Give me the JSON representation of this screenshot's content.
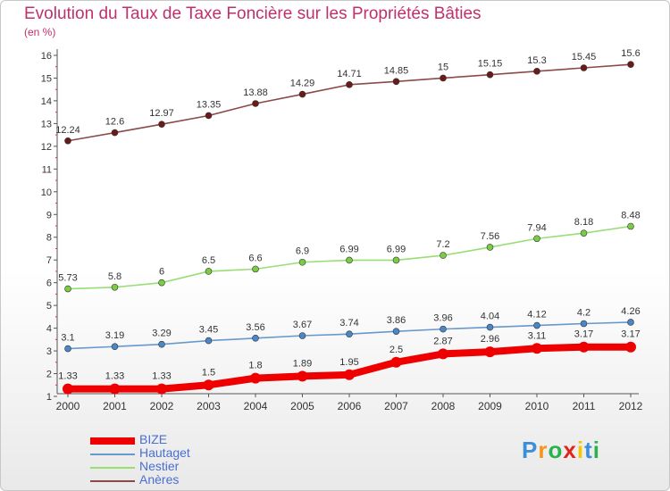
{
  "title": "Evolution du Taux de Taxe Foncière sur les Propriétés Bâties",
  "subtitle": "(en %)",
  "logo": {
    "text": "Proxiti",
    "colors": [
      "#3b8fd8",
      "#f7941d",
      "#2bb24c",
      "#e2231a",
      "#f7c600",
      "#3b8fd8",
      "#2bb24c"
    ]
  },
  "chart_data": {
    "type": "line",
    "categories": [
      "2000",
      "2001",
      "2002",
      "2003",
      "2004",
      "2005",
      "2006",
      "2007",
      "2008",
      "2009",
      "2010",
      "2011",
      "2012"
    ],
    "ylim": [
      1,
      16
    ],
    "yticks": [
      1,
      2,
      3,
      4,
      5,
      6,
      7,
      8,
      9,
      10,
      11,
      12,
      13,
      14,
      15,
      16
    ],
    "grid": false,
    "legend_position": "bottom-left",
    "series": [
      {
        "name": "BIZE",
        "color": "#ee0000",
        "bold": true,
        "values": [
          1.33,
          1.33,
          1.33,
          1.5,
          1.8,
          1.89,
          1.95,
          2.5,
          2.87,
          2.96,
          3.11,
          3.17,
          3.17
        ]
      },
      {
        "name": "Hautaget",
        "color": "#6699cc",
        "point_color": "#4a86c8",
        "bold": false,
        "values": [
          3.1,
          3.19,
          3.29,
          3.45,
          3.56,
          3.67,
          3.74,
          3.86,
          3.96,
          4.04,
          4.12,
          4.2,
          4.26
        ]
      },
      {
        "name": "Nestier",
        "color": "#99dd77",
        "point_color": "#7acc44",
        "bold": false,
        "values": [
          5.73,
          5.8,
          6,
          6.5,
          6.6,
          6.9,
          6.99,
          6.99,
          7.2,
          7.56,
          7.94,
          8.18,
          8.48
        ]
      },
      {
        "name": "Anères",
        "color": "#8b4a4a",
        "point_color": "#6b1a1a",
        "bold": false,
        "values": [
          12.24,
          12.6,
          12.97,
          13.35,
          13.88,
          14.29,
          14.71,
          14.85,
          15,
          15.15,
          15.3,
          15.45,
          15.6
        ]
      }
    ],
    "data_labels": {
      "BIZE": [
        "1.33",
        "1.33",
        "1.33",
        "1.5",
        "1.8",
        "1.89",
        "1.95",
        "2.5",
        "2.87",
        "2.96",
        "3.11",
        "3.17",
        "3.17"
      ],
      "Hautaget": [
        "3.1",
        "3.19",
        "3.29",
        "3.45",
        "3.56",
        "3.67",
        "3.74",
        "3.86",
        "3.96",
        "4.04",
        "4.12",
        "4.2",
        "4.26"
      ],
      "Nestier": [
        "5.73",
        "5.8",
        "6",
        "6.5",
        "6.6",
        "6.9",
        "6.99",
        "6.99",
        "7.2",
        "7.56",
        "7.94",
        "8.18",
        "8.48"
      ],
      "Anères": [
        "12.24",
        "12.6",
        "12.97",
        "13.35",
        "13.88",
        "14.29",
        "14.71",
        "14.85",
        "15",
        "15.15",
        "15.3",
        "15.45",
        "15.6"
      ]
    }
  }
}
